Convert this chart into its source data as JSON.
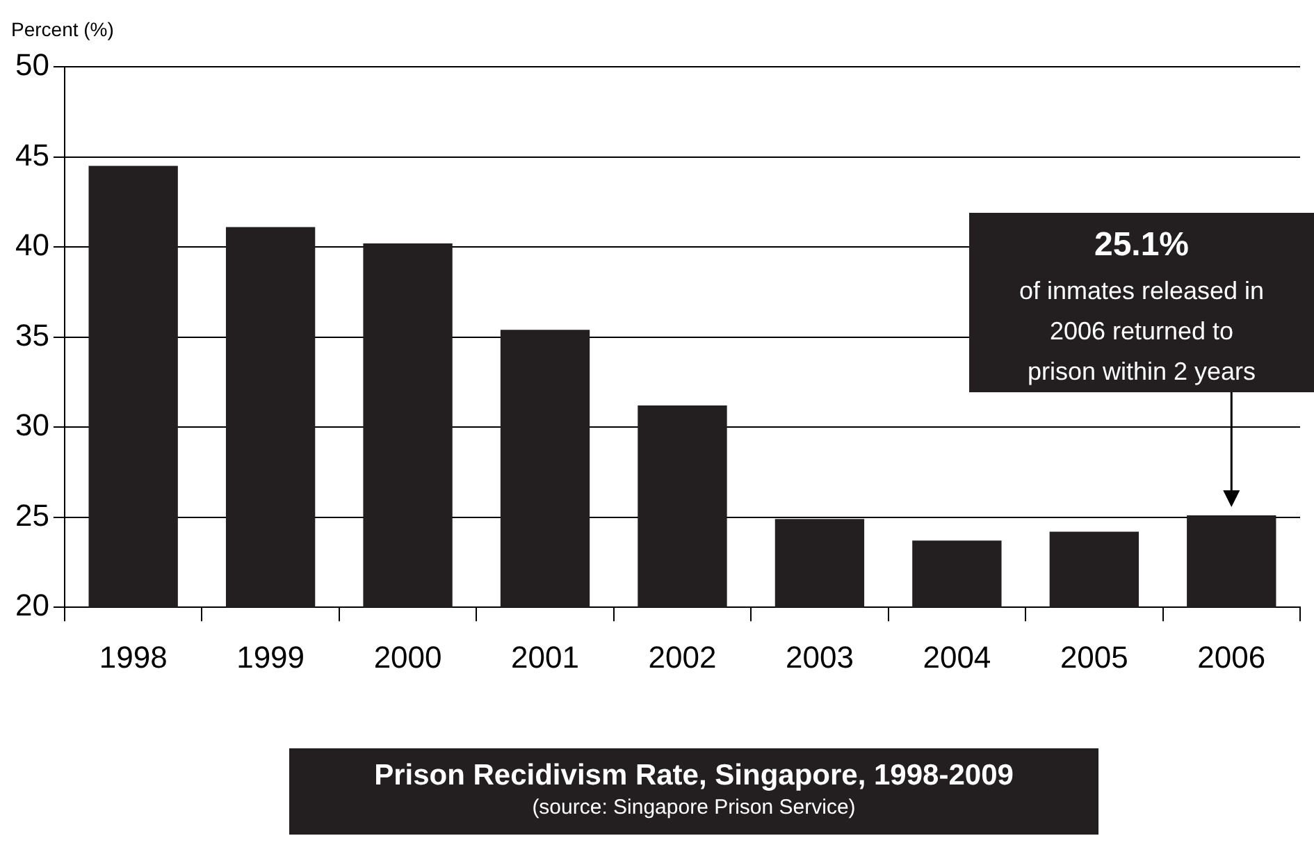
{
  "chart_data": {
    "type": "bar",
    "title": "Prison Recidivism Rate, Singapore, 1998-2009",
    "subtitle": "(source: Singapore Prison Service)",
    "ylabel": "Percent (%)",
    "categories": [
      "1998",
      "1999",
      "2000",
      "2001",
      "2002",
      "2003",
      "2004",
      "2005",
      "2006"
    ],
    "values": [
      44.5,
      41.1,
      40.2,
      35.4,
      31.2,
      24.9,
      23.7,
      24.2,
      25.1
    ],
    "color": "#231f20",
    "ylim": [
      20,
      50
    ],
    "yticks": [
      20,
      25,
      30,
      35,
      40,
      45,
      50
    ],
    "grid": "y",
    "annotations": [
      {
        "text": "25.1%\nof inmates released in\n2006 returned to\nprison within 2 years",
        "x": "2006",
        "y": 25.1
      }
    ]
  }
}
